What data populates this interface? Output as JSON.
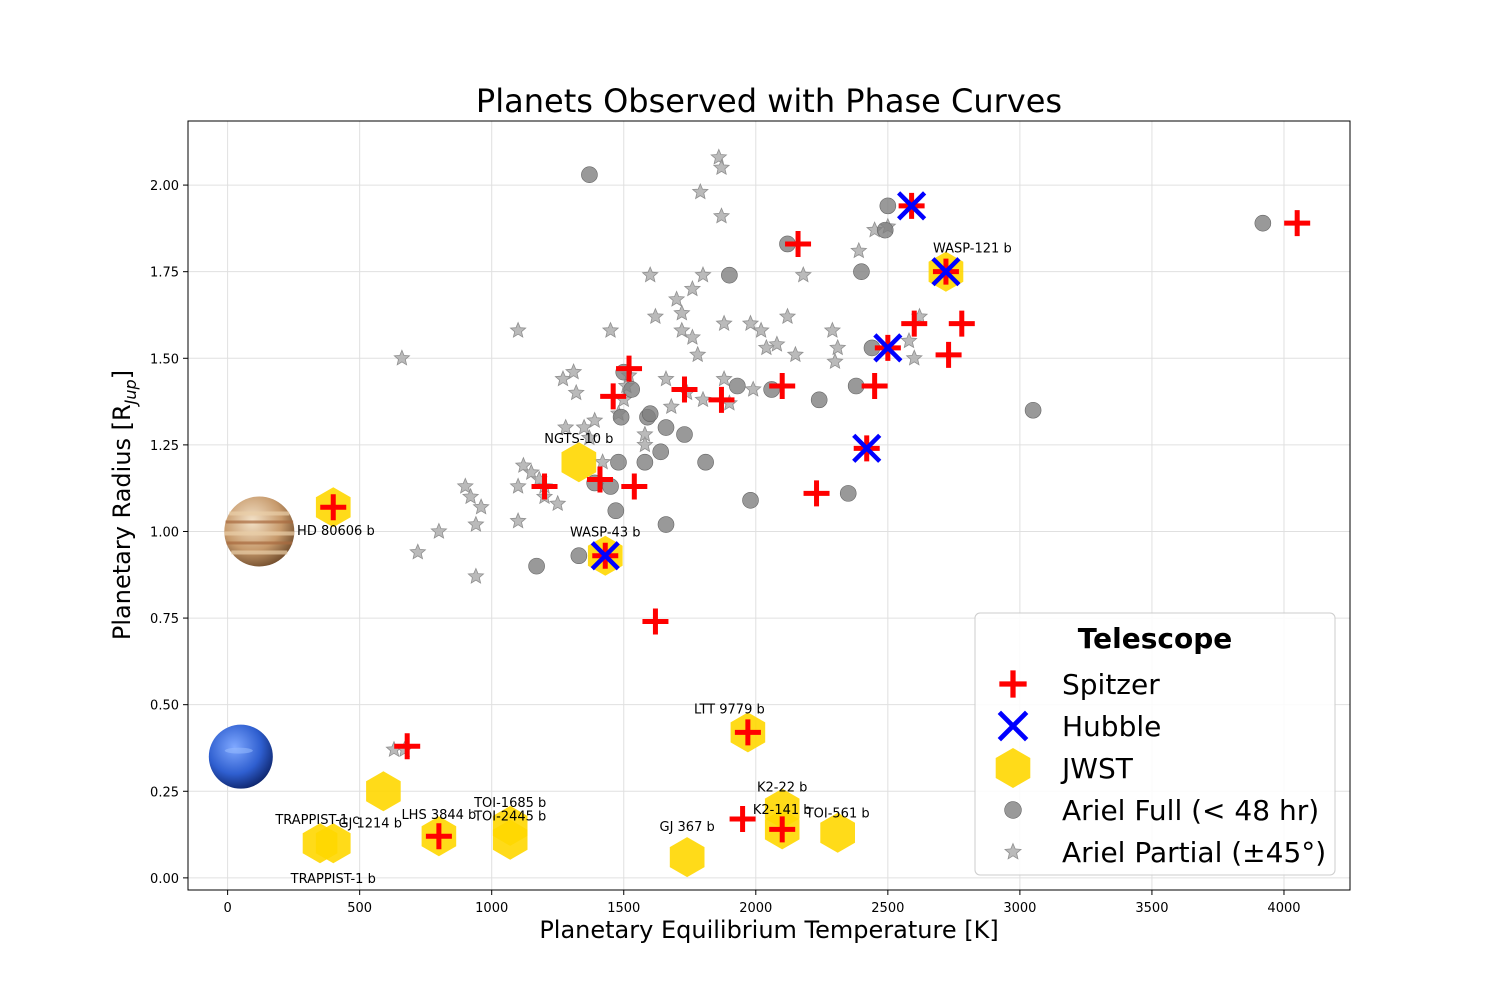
{
  "chart_data": {
    "type": "scatter",
    "title": "Planets Observed with Phase Curves",
    "xlabel": "Planetary Equilibrium Temperature [K]",
    "ylabel": "Planetary Radius [R",
    "ylabel_sub": "Jup",
    "ylabel_close": "]",
    "xlim": [
      -150,
      4250
    ],
    "ylim": [
      -0.035,
      2.185
    ],
    "xticks": [
      0,
      500,
      1000,
      1500,
      2000,
      2500,
      3000,
      3500,
      4000
    ],
    "xtick_labels": [
      "0",
      "500",
      "1000",
      "1500",
      "2000",
      "2500",
      "3000",
      "3500",
      "4000"
    ],
    "yticks": [
      0,
      0.25,
      0.5,
      0.75,
      1.0,
      1.25,
      1.5,
      1.75,
      2.0
    ],
    "ytick_labels": [
      "0.00",
      "0.25",
      "0.50",
      "0.75",
      "1.00",
      "1.25",
      "1.50",
      "1.75",
      "2.00"
    ],
    "grid": true,
    "legend": {
      "title": "Telescope",
      "position": "lower-right",
      "entries": [
        {
          "label": "Spitzer",
          "marker": "plus",
          "color": "#ff0000"
        },
        {
          "label": "Hubble",
          "marker": "x",
          "color": "#0000ff"
        },
        {
          "label": "JWST",
          "marker": "hexagon",
          "color": "#ffd700"
        },
        {
          "label": "Ariel Full (< 48 hr)",
          "marker": "circle",
          "color": "#808080"
        },
        {
          "label": "Ariel Partial (±45°)",
          "marker": "star",
          "color": "#a9a9a9"
        }
      ]
    },
    "reference_planets": [
      {
        "name": "jupiter",
        "x": 120,
        "y": 1.0
      },
      {
        "name": "neptune",
        "x": 50,
        "y": 0.35
      }
    ],
    "series": [
      {
        "name": "Ariel Partial (±45°)",
        "marker": "star",
        "color": "#a9a9a9",
        "points": [
          [
            660,
            1.5
          ],
          [
            720,
            0.94
          ],
          [
            800,
            1.0
          ],
          [
            900,
            1.13
          ],
          [
            920,
            1.1
          ],
          [
            940,
            1.02
          ],
          [
            960,
            1.07
          ],
          [
            940,
            0.87
          ],
          [
            1100,
            1.58
          ],
          [
            1100,
            1.13
          ],
          [
            1120,
            1.19
          ],
          [
            1100,
            1.03
          ],
          [
            1150,
            1.17
          ],
          [
            1180,
            1.15
          ],
          [
            1200,
            1.13
          ],
          [
            1200,
            1.1
          ],
          [
            1250,
            1.08
          ],
          [
            1270,
            1.44
          ],
          [
            1280,
            1.3
          ],
          [
            1310,
            1.46
          ],
          [
            1320,
            1.4
          ],
          [
            1350,
            1.3
          ],
          [
            1370,
            1.27
          ],
          [
            1390,
            1.32
          ],
          [
            1420,
            1.2
          ],
          [
            1450,
            1.58
          ],
          [
            1480,
            1.34
          ],
          [
            1500,
            1.38
          ],
          [
            1510,
            1.42
          ],
          [
            1520,
            1.45
          ],
          [
            1580,
            1.28
          ],
          [
            1580,
            1.25
          ],
          [
            1600,
            1.74
          ],
          [
            1620,
            1.62
          ],
          [
            1660,
            1.44
          ],
          [
            1680,
            1.36
          ],
          [
            1700,
            1.67
          ],
          [
            1720,
            1.58
          ],
          [
            1720,
            1.63
          ],
          [
            1740,
            1.4
          ],
          [
            1760,
            1.7
          ],
          [
            1760,
            1.56
          ],
          [
            1780,
            1.51
          ],
          [
            1790,
            1.98
          ],
          [
            1800,
            1.74
          ],
          [
            1800,
            1.38
          ],
          [
            1860,
            2.08
          ],
          [
            1870,
            2.05
          ],
          [
            1870,
            1.91
          ],
          [
            1880,
            1.6
          ],
          [
            1880,
            1.44
          ],
          [
            1900,
            1.37
          ],
          [
            1980,
            1.6
          ],
          [
            1990,
            1.41
          ],
          [
            2020,
            1.58
          ],
          [
            2040,
            1.53
          ],
          [
            2080,
            1.54
          ],
          [
            2120,
            1.62
          ],
          [
            2150,
            1.51
          ],
          [
            2180,
            1.74
          ],
          [
            2290,
            1.58
          ],
          [
            2300,
            1.49
          ],
          [
            2310,
            1.53
          ],
          [
            2390,
            1.81
          ],
          [
            2450,
            1.87
          ],
          [
            2500,
            1.88
          ],
          [
            2580,
            1.55
          ],
          [
            2620,
            1.62
          ],
          [
            2600,
            1.5
          ],
          [
            630,
            0.37
          ],
          [
            670,
            0.37
          ]
        ]
      },
      {
        "name": "Ariel Full (< 48 hr)",
        "marker": "circle",
        "color": "#808080",
        "points": [
          [
            1170,
            0.9
          ],
          [
            1330,
            0.93
          ],
          [
            1370,
            2.03
          ],
          [
            1390,
            1.14
          ],
          [
            1450,
            1.13
          ],
          [
            1470,
            1.06
          ],
          [
            1480,
            1.2
          ],
          [
            1490,
            1.33
          ],
          [
            1500,
            1.46
          ],
          [
            1530,
            1.41
          ],
          [
            1580,
            1.2
          ],
          [
            1590,
            1.33
          ],
          [
            1600,
            1.34
          ],
          [
            1640,
            1.23
          ],
          [
            1660,
            1.3
          ],
          [
            1660,
            1.02
          ],
          [
            1730,
            1.28
          ],
          [
            1810,
            1.2
          ],
          [
            1900,
            1.74
          ],
          [
            1930,
            1.42
          ],
          [
            1980,
            1.09
          ],
          [
            2060,
            1.41
          ],
          [
            2120,
            1.83
          ],
          [
            2240,
            1.38
          ],
          [
            2350,
            1.11
          ],
          [
            2380,
            1.42
          ],
          [
            2400,
            1.75
          ],
          [
            2440,
            1.53
          ],
          [
            2490,
            1.87
          ],
          [
            2500,
            1.94
          ],
          [
            3050,
            1.35
          ],
          [
            3920,
            1.89
          ]
        ]
      },
      {
        "name": "JWST",
        "marker": "hexagon",
        "color": "#ffd700",
        "points": [
          [
            400,
            1.07
          ],
          [
            1330,
            1.2
          ],
          [
            1430,
            0.93
          ],
          [
            2720,
            1.75
          ],
          [
            1970,
            0.42
          ],
          [
            590,
            0.25
          ],
          [
            350,
            0.1
          ],
          [
            400,
            0.1
          ],
          [
            800,
            0.12
          ],
          [
            1070,
            0.15
          ],
          [
            1070,
            0.11
          ],
          [
            1740,
            0.06
          ],
          [
            2100,
            0.2
          ],
          [
            2100,
            0.14
          ],
          [
            2310,
            0.13
          ]
        ]
      },
      {
        "name": "Spitzer",
        "marker": "plus",
        "color": "#ff0000",
        "points": [
          [
            400,
            1.07
          ],
          [
            680,
            0.38
          ],
          [
            800,
            0.12
          ],
          [
            1200,
            1.13
          ],
          [
            1410,
            1.15
          ],
          [
            1430,
            0.93
          ],
          [
            1460,
            1.39
          ],
          [
            1520,
            1.47
          ],
          [
            1540,
            1.13
          ],
          [
            1620,
            0.74
          ],
          [
            1730,
            1.41
          ],
          [
            1870,
            1.38
          ],
          [
            1970,
            0.42
          ],
          [
            1950,
            0.17
          ],
          [
            2100,
            0.14
          ],
          [
            2100,
            1.42
          ],
          [
            2160,
            1.83
          ],
          [
            2230,
            1.11
          ],
          [
            2420,
            1.24
          ],
          [
            2450,
            1.42
          ],
          [
            2500,
            1.53
          ],
          [
            2590,
            1.94
          ],
          [
            2600,
            1.6
          ],
          [
            2720,
            1.75
          ],
          [
            2730,
            1.51
          ],
          [
            2780,
            1.6
          ],
          [
            4050,
            1.89
          ]
        ]
      },
      {
        "name": "Hubble",
        "marker": "x",
        "color": "#0000ff",
        "points": [
          [
            1430,
            0.93
          ],
          [
            2420,
            1.24
          ],
          [
            2500,
            1.53
          ],
          [
            2590,
            1.94
          ],
          [
            2720,
            1.75
          ]
        ]
      }
    ],
    "annotations": [
      {
        "text": "NGTS-10 b",
        "x": 1330,
        "y": 1.255,
        "anchor": "middle"
      },
      {
        "text": "WASP-43 b",
        "x": 1430,
        "y": 0.985,
        "anchor": "middle"
      },
      {
        "text": "WASP-121 b",
        "x": 2820,
        "y": 1.805,
        "anchor": "middle"
      },
      {
        "text": "HD 80606 b",
        "x": 410,
        "y": 0.99,
        "anchor": "middle"
      },
      {
        "text": "LTT 9779 b",
        "x": 1900,
        "y": 0.475,
        "anchor": "middle"
      },
      {
        "text": "K2-22 b",
        "x": 2100,
        "y": 0.25,
        "anchor": "middle"
      },
      {
        "text": "K2-141 b",
        "x": 2100,
        "y": 0.185,
        "anchor": "middle"
      },
      {
        "text": "TOI-561 b",
        "x": 2310,
        "y": 0.175,
        "anchor": "middle"
      },
      {
        "text": "TOI-1685 b",
        "x": 1070,
        "y": 0.205,
        "anchor": "middle"
      },
      {
        "text": "TOI-2445 b",
        "x": 1070,
        "y": 0.165,
        "anchor": "middle"
      },
      {
        "text": "LHS 3844 b",
        "x": 800,
        "y": 0.17,
        "anchor": "middle"
      },
      {
        "text": "GJ 1214 b",
        "x": 540,
        "y": 0.145,
        "anchor": "middle"
      },
      {
        "text": "TRAPPIST-1 c",
        "x": 340,
        "y": 0.155,
        "anchor": "middle"
      },
      {
        "text": "TRAPPIST-1 b",
        "x": 400,
        "y": -0.015,
        "anchor": "middle"
      },
      {
        "text": "GJ 367 b",
        "x": 1740,
        "y": 0.135,
        "anchor": "middle"
      }
    ]
  }
}
